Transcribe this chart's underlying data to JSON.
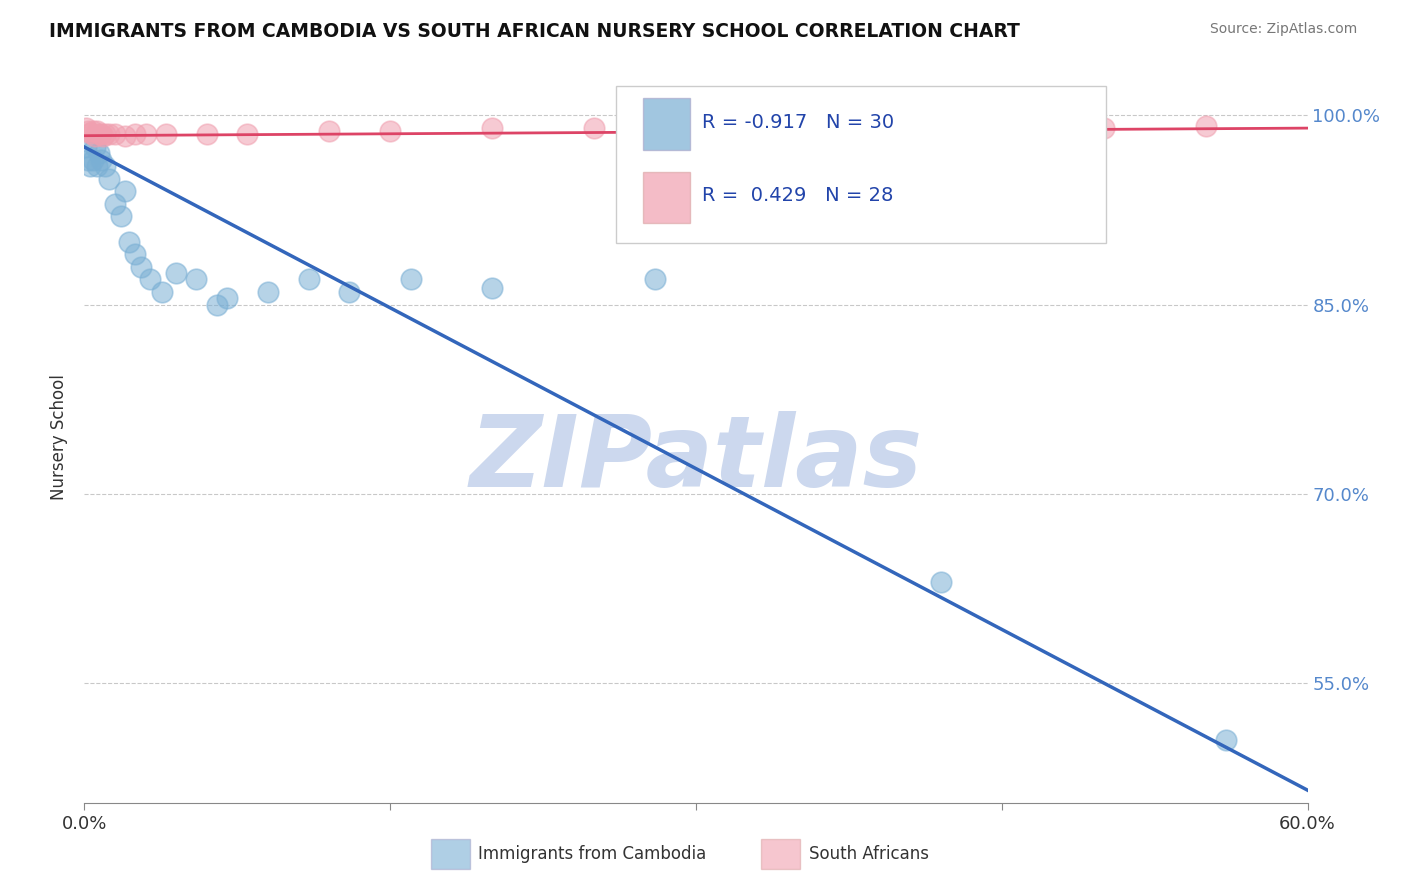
{
  "title": "IMMIGRANTS FROM CAMBODIA VS SOUTH AFRICAN NURSERY SCHOOL CORRELATION CHART",
  "source": "Source: ZipAtlas.com",
  "ylabel": "Nursery School",
  "xlim": [
    0.0,
    0.6
  ],
  "ylim": [
    0.455,
    1.035
  ],
  "yticks": [
    0.55,
    0.7,
    0.85,
    1.0
  ],
  "ytick_labels": [
    "55.0%",
    "70.0%",
    "85.0%",
    "100.0%"
  ],
  "xtick_positions": [
    0.0,
    0.15,
    0.3,
    0.45,
    0.6
  ],
  "xtick_labels": [
    "0.0%",
    "",
    "",
    "",
    "60.0%"
  ],
  "r_cambodia": -0.917,
  "n_cambodia": 30,
  "r_south_africa": 0.429,
  "n_south_africa": 28,
  "blue_color": "#7aafd4",
  "pink_color": "#f0a0b0",
  "blue_line_color": "#3366bb",
  "pink_line_color": "#dd4466",
  "watermark": "ZIPatlas",
  "watermark_color": "#ccd8ee",
  "cambodia_x": [
    0.001,
    0.002,
    0.003,
    0.004,
    0.005,
    0.006,
    0.007,
    0.008,
    0.01,
    0.012,
    0.015,
    0.018,
    0.02,
    0.022,
    0.025,
    0.028,
    0.032,
    0.038,
    0.045,
    0.055,
    0.065,
    0.07,
    0.09,
    0.11,
    0.13,
    0.16,
    0.2,
    0.28,
    0.42,
    0.56
  ],
  "cambodia_y": [
    0.975,
    0.965,
    0.96,
    0.965,
    0.975,
    0.96,
    0.97,
    0.965,
    0.96,
    0.95,
    0.93,
    0.92,
    0.94,
    0.9,
    0.89,
    0.88,
    0.87,
    0.86,
    0.875,
    0.87,
    0.85,
    0.855,
    0.86,
    0.87,
    0.86,
    0.87,
    0.863,
    0.87,
    0.63,
    0.505
  ],
  "sa_x": [
    0.001,
    0.002,
    0.003,
    0.004,
    0.005,
    0.006,
    0.007,
    0.008,
    0.009,
    0.01,
    0.012,
    0.015,
    0.02,
    0.025,
    0.03,
    0.04,
    0.06,
    0.08,
    0.12,
    0.15,
    0.2,
    0.25,
    0.3,
    0.35,
    0.4,
    0.45,
    0.5,
    0.55
  ],
  "sa_y": [
    0.99,
    0.988,
    0.986,
    0.988,
    0.984,
    0.988,
    0.985,
    0.985,
    0.984,
    0.985,
    0.985,
    0.985,
    0.984,
    0.985,
    0.985,
    0.985,
    0.985,
    0.985,
    0.988,
    0.988,
    0.99,
    0.99,
    0.99,
    0.988,
    0.988,
    0.988,
    0.99,
    0.992
  ],
  "blue_line_x0": 0.0,
  "blue_line_y0": 0.975,
  "blue_line_x1": 0.6,
  "blue_line_y1": 0.465,
  "pink_line_x0": 0.0,
  "pink_line_y0": 0.984,
  "pink_line_x1": 0.6,
  "pink_line_y1": 0.99
}
